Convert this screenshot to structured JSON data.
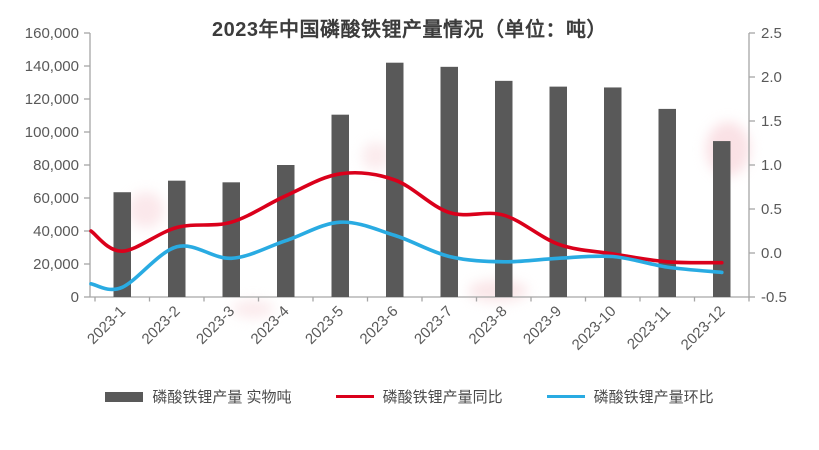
{
  "chart_data": {
    "type": "combo_bar_line",
    "title": "2023年中国磷酸铁锂产量情况（单位：吨）",
    "categories": [
      "2023-1",
      "2023-2",
      "2023-3",
      "2023-4",
      "2023-5",
      "2023-6",
      "2023-7",
      "2023-8",
      "2023-9",
      "2023-10",
      "2023-11",
      "2023-12"
    ],
    "series": [
      {
        "name": "磷酸铁锂产量 实物吨",
        "type": "bar",
        "axis": "left",
        "color": "#595959",
        "values": [
          63500,
          70500,
          69500,
          80000,
          110500,
          142000,
          139500,
          131000,
          127500,
          127000,
          114000,
          94500
        ]
      },
      {
        "name": "磷酸铁锂产量同比",
        "type": "line",
        "axis": "right",
        "color": "#da001b",
        "axis_edge_start": 0.25,
        "values": [
          0.02,
          0.29,
          0.35,
          0.65,
          0.9,
          0.83,
          0.46,
          0.43,
          0.1,
          -0.01,
          -0.1,
          -0.11
        ]
      },
      {
        "name": "磷酸铁锂产量环比",
        "type": "line",
        "axis": "right",
        "color": "#29abe2",
        "axis_edge_start": -0.35,
        "values": [
          -0.39,
          0.07,
          -0.06,
          0.14,
          0.35,
          0.2,
          -0.04,
          -0.1,
          -0.06,
          -0.04,
          -0.16,
          -0.22
        ]
      }
    ],
    "left_axis": {
      "min": 0,
      "max": 160000,
      "step": 20000,
      "tick_labels": [
        "0",
        "20,000",
        "40,000",
        "60,000",
        "80,000",
        "100,000",
        "120,000",
        "140,000",
        "160,000"
      ]
    },
    "right_axis": {
      "min": -0.5,
      "max": 2.5,
      "step": 0.5,
      "tick_labels": [
        "-0.5",
        "0.0",
        "0.5",
        "1.0",
        "1.5",
        "2.0",
        "2.5"
      ]
    },
    "gridlines": false,
    "legend_position": "bottom",
    "text_color": "#595959",
    "axis_color": "#a6a6a6"
  }
}
